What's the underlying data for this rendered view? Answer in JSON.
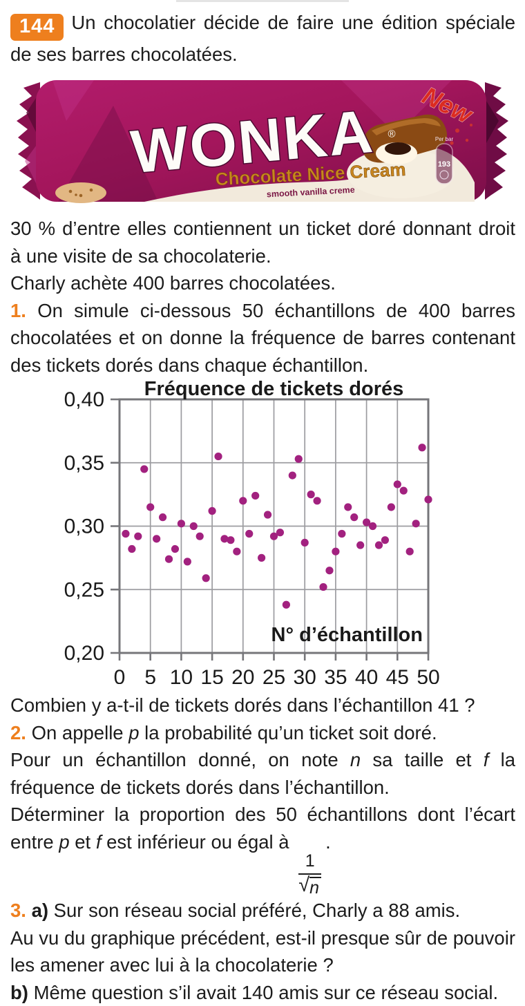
{
  "colors": {
    "accent_orange": "#EE7F1E",
    "dot_magenta": "#A2217F",
    "body_text": "#1C1C1C"
  },
  "header": {
    "badge": "144",
    "runs": [
      {
        "t": "Un chocolatier décide de faire une édition spéciale de ses barres chocolatées.",
        "s": "p"
      }
    ]
  },
  "wonka": {
    "brand": "WONKA",
    "reg": "®",
    "new_badge": "New",
    "flavor": "Chocolate Nice Cream",
    "tagline": "smooth vanilla creme",
    "nutrition_header": "Per bar",
    "nutrition_value": "193"
  },
  "texts": {
    "t1": [
      {
        "t": "30 % d’entre elles contiennent un ticket doré donnant droit à une visite de sa chocolaterie.",
        "s": "p"
      }
    ],
    "t2": [
      {
        "t": "Charly achète 400 barres chocolatées.",
        "s": "p"
      }
    ],
    "q1": [
      {
        "t": "1. ",
        "s": "o"
      },
      {
        "t": "On simule ci-dessous 50 échantillons de 400 barres chocolatées et on donne la fréquence de barres contenant des tickets dorés dans chaque échantillon.",
        "s": "p"
      }
    ],
    "q1b": [
      {
        "t": "Combien y a-t-il de tickets dorés dans l’échantillon 41 ?",
        "s": "p"
      }
    ],
    "q2": [
      {
        "t": "2. ",
        "s": "o"
      },
      {
        "t": "On appelle ",
        "s": "p"
      },
      {
        "t": "p",
        "s": "i"
      },
      {
        "t": " la probabilité qu’un ticket soit doré.",
        "s": "p"
      }
    ],
    "q2b": [
      {
        "t": "Pour un échantillon donné, on note ",
        "s": "p"
      },
      {
        "t": "n",
        "s": "i"
      },
      {
        "t": " sa taille et ",
        "s": "p"
      },
      {
        "t": "f",
        "s": "i"
      },
      {
        "t": " la fréquence de tickets dorés dans l’échantillon.",
        "s": "p"
      }
    ],
    "q2c": [
      {
        "t": "Déterminer la proportion des 50 échantillons dont l’écart entre ",
        "s": "p"
      },
      {
        "t": "p",
        "s": "i"
      },
      {
        "t": " et ",
        "s": "p"
      },
      {
        "t": "f",
        "s": "i"
      },
      {
        "t": " est inférieur ou égal à ",
        "s": "p"
      },
      {
        "s": "frac",
        "num": "1",
        "sqrt": "√",
        "rad": "n"
      },
      {
        "t": ".",
        "s": "p"
      }
    ],
    "q3": [
      {
        "t": "3. ",
        "s": "o"
      },
      {
        "t": "a) ",
        "s": "b"
      },
      {
        "t": "Sur son réseau social préféré, Charly a 88 amis.",
        "s": "p"
      }
    ],
    "q3b": [
      {
        "t": "Au vu du graphique précédent, est-il presque sûr de pouvoir les amener avec lui à la chocolaterie ?",
        "s": "p"
      }
    ],
    "q3c": [
      {
        "t": "b) ",
        "s": "b"
      },
      {
        "t": "Même question s’il avait 140 amis sur ce réseau social.",
        "s": "p"
      }
    ]
  },
  "chart_data": {
    "type": "scatter",
    "title": "Fréquence de tickets dorés",
    "xlabel": "N° d’échantillon",
    "ylabel": "Fréquence de tickets dorés",
    "xlim": [
      0,
      50
    ],
    "ylim": [
      0.2,
      0.4
    ],
    "xticks": [
      0,
      5,
      10,
      15,
      20,
      25,
      30,
      35,
      40,
      45,
      50
    ],
    "yticks": [
      0.2,
      0.25,
      0.3,
      0.35,
      0.4
    ],
    "grid": true,
    "legend": false,
    "point_color": "#A2217F",
    "x": [
      1,
      2,
      3,
      4,
      5,
      6,
      7,
      8,
      9,
      10,
      11,
      12,
      13,
      14,
      15,
      16,
      17,
      18,
      19,
      20,
      21,
      22,
      23,
      24,
      25,
      26,
      27,
      28,
      29,
      30,
      31,
      32,
      33,
      34,
      35,
      36,
      37,
      38,
      39,
      40,
      41,
      42,
      43,
      44,
      45,
      46,
      47,
      48,
      49,
      50
    ],
    "y": [
      0.294,
      0.282,
      0.292,
      0.345,
      0.315,
      0.29,
      0.307,
      0.274,
      0.282,
      0.302,
      0.272,
      0.3,
      0.292,
      0.259,
      0.312,
      0.355,
      0.29,
      0.289,
      0.28,
      0.32,
      0.294,
      0.324,
      0.275,
      0.309,
      0.292,
      0.295,
      0.238,
      0.34,
      0.353,
      0.287,
      0.325,
      0.32,
      0.252,
      0.265,
      0.28,
      0.294,
      0.315,
      0.307,
      0.285,
      0.303,
      0.3,
      0.285,
      0.289,
      0.315,
      0.333,
      0.328,
      0.28,
      0.302,
      0.362,
      0.321
    ]
  }
}
